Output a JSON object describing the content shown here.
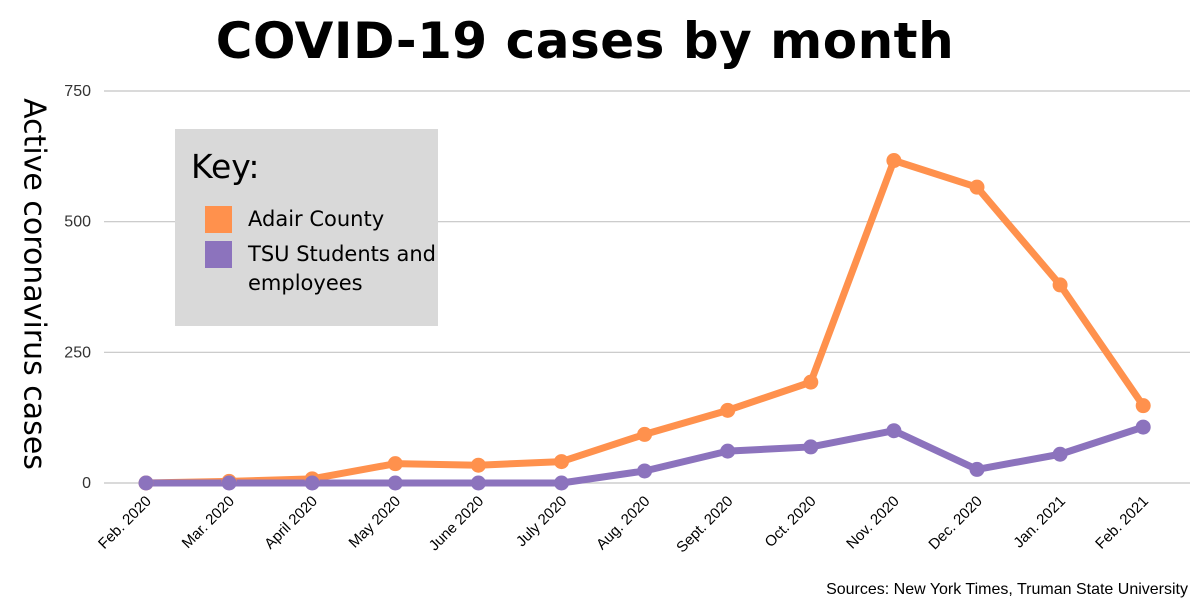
{
  "chart_data": {
    "type": "line",
    "title": "COVID-19 cases by month",
    "xlabel": "",
    "ylabel": "Active coronavirus cases",
    "categories": [
      "Feb. 2020",
      "Mar. 2020",
      "April 2020",
      "May 2020",
      "June 2020",
      "July 2020",
      "Aug. 2020",
      "Sept. 2020",
      "Oct. 2020",
      "Nov. 2020",
      "Dec. 2020",
      "Jan. 2021",
      "Feb. 2021"
    ],
    "ylim": [
      0,
      750
    ],
    "yticks": [
      "0",
      "250",
      "500",
      "750"
    ],
    "grid": true,
    "legend_title": "Key:",
    "series": [
      {
        "name": "Adair County",
        "color": "#ff914d",
        "values": [
          0,
          3,
          8,
          37,
          34,
          41,
          93,
          139,
          193,
          617,
          566,
          379,
          148
        ]
      },
      {
        "name": "TSU Students and employees",
        "color": "#8c73bd",
        "values": [
          0,
          0,
          0,
          0,
          0,
          0,
          23,
          61,
          69,
          100,
          26,
          55,
          107
        ]
      }
    ],
    "source": "Sources: New York Times, Truman State University"
  }
}
